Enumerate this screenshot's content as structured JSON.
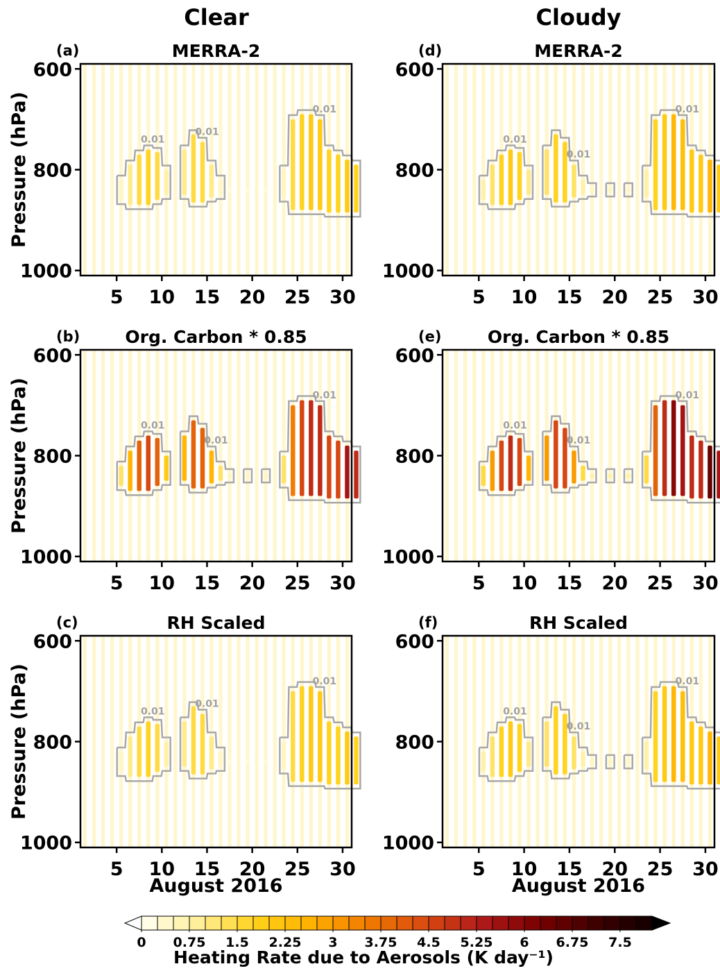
{
  "column_titles": [
    "Clear",
    "Cloudy"
  ],
  "chart_data": [
    {
      "type": "heatmap",
      "panel_label": "(a)",
      "title": "MERRA-2",
      "ylabel": "Pressure (hPa)",
      "xlim": [
        1,
        31
      ],
      "xticks": [
        5,
        10,
        15,
        20,
        25,
        30
      ],
      "ylim": [
        1010,
        590
      ],
      "yticks": [
        600,
        800,
        1000
      ],
      "contour_level": 0.01,
      "x": [
        1,
        2,
        3,
        4,
        5,
        6,
        7,
        8,
        9,
        10,
        11,
        12,
        13,
        14,
        15,
        16,
        17,
        18,
        19,
        20,
        21,
        22,
        23,
        24,
        25,
        26,
        27,
        28,
        29,
        30,
        31
      ],
      "top": [
        null,
        null,
        null,
        null,
        820,
        790,
        770,
        760,
        765,
        800,
        null,
        760,
        730,
        745,
        790,
        820,
        835,
        null,
        835,
        null,
        835,
        null,
        800,
        700,
        690,
        690,
        700,
        760,
        770,
        780,
        790
      ],
      "bottom": [
        null,
        null,
        null,
        null,
        860,
        870,
        870,
        870,
        860,
        850,
        null,
        850,
        865,
        865,
        855,
        850,
        845,
        null,
        845,
        null,
        845,
        null,
        855,
        880,
        880,
        880,
        880,
        885,
        885,
        885,
        885
      ],
      "values": [
        null,
        null,
        null,
        null,
        0.5,
        1,
        1.5,
        1.75,
        1.5,
        0.75,
        null,
        1,
        1.5,
        1.5,
        1,
        0.5,
        0.25,
        null,
        0.25,
        null,
        0.25,
        null,
        0.5,
        1.5,
        1.75,
        2,
        2,
        1.75,
        1.75,
        2,
        1.75
      ]
    },
    {
      "type": "heatmap",
      "panel_label": "(b)",
      "title": "Org. Carbon * 0.85",
      "ylabel": "Pressure (hPa)",
      "xlim": [
        1,
        31
      ],
      "xticks": [
        5,
        10,
        15,
        20,
        25,
        30
      ],
      "ylim": [
        1010,
        590
      ],
      "yticks": [
        600,
        800,
        1000
      ],
      "contour_level": 0.01,
      "x": [
        1,
        2,
        3,
        4,
        5,
        6,
        7,
        8,
        9,
        10,
        11,
        12,
        13,
        14,
        15,
        16,
        17,
        18,
        19,
        20,
        21,
        22,
        23,
        24,
        25,
        26,
        27,
        28,
        29,
        30,
        31
      ],
      "top": [
        null,
        null,
        null,
        null,
        820,
        790,
        770,
        760,
        765,
        800,
        null,
        760,
        730,
        745,
        790,
        820,
        835,
        null,
        835,
        null,
        835,
        null,
        800,
        700,
        690,
        690,
        700,
        760,
        770,
        780,
        790
      ],
      "bottom": [
        null,
        null,
        null,
        null,
        860,
        870,
        870,
        870,
        860,
        850,
        null,
        850,
        865,
        865,
        855,
        850,
        845,
        null,
        845,
        null,
        845,
        null,
        855,
        880,
        880,
        880,
        880,
        885,
        885,
        885,
        885
      ],
      "values": [
        null,
        null,
        null,
        null,
        1.25,
        2.5,
        4,
        4.5,
        4,
        2,
        null,
        2.5,
        4,
        4,
        2.5,
        1.25,
        0.5,
        null,
        0.5,
        null,
        0.5,
        null,
        1.25,
        3.5,
        4.5,
        5,
        5,
        4.5,
        4.5,
        5.5,
        5
      ]
    },
    {
      "type": "heatmap",
      "panel_label": "(c)",
      "title": "RH Scaled",
      "ylabel": "Pressure (hPa)",
      "xlabel": "August 2016",
      "xlim": [
        1,
        31
      ],
      "xticks": [
        5,
        10,
        15,
        20,
        25,
        30
      ],
      "ylim": [
        1010,
        590
      ],
      "yticks": [
        600,
        800,
        1000
      ],
      "contour_level": 0.01,
      "x": [
        1,
        2,
        3,
        4,
        5,
        6,
        7,
        8,
        9,
        10,
        11,
        12,
        13,
        14,
        15,
        16,
        17,
        18,
        19,
        20,
        21,
        22,
        23,
        24,
        25,
        26,
        27,
        28,
        29,
        30,
        31
      ],
      "top": [
        null,
        null,
        null,
        null,
        820,
        790,
        770,
        760,
        765,
        800,
        null,
        760,
        730,
        745,
        790,
        820,
        835,
        null,
        835,
        null,
        835,
        null,
        800,
        700,
        690,
        690,
        700,
        760,
        770,
        780,
        790
      ],
      "bottom": [
        null,
        null,
        null,
        null,
        860,
        870,
        870,
        870,
        860,
        850,
        null,
        850,
        865,
        865,
        855,
        850,
        845,
        null,
        845,
        null,
        845,
        null,
        855,
        880,
        880,
        880,
        880,
        885,
        885,
        885,
        885
      ],
      "values": [
        null,
        null,
        null,
        null,
        0.5,
        1,
        1.5,
        1.75,
        1.5,
        0.75,
        null,
        1,
        1.5,
        1.5,
        1,
        0.5,
        0.25,
        null,
        0.25,
        null,
        0.25,
        null,
        0.5,
        1.5,
        1.75,
        2,
        2,
        1.75,
        1.75,
        2,
        1.75
      ]
    },
    {
      "type": "heatmap",
      "panel_label": "(d)",
      "title": "MERRA-2",
      "xlim": [
        1,
        31
      ],
      "xticks": [
        5,
        10,
        15,
        20,
        25,
        30
      ],
      "ylim": [
        1010,
        590
      ],
      "yticks": [
        600,
        800,
        1000
      ],
      "contour_level": 0.01,
      "x": [
        1,
        2,
        3,
        4,
        5,
        6,
        7,
        8,
        9,
        10,
        11,
        12,
        13,
        14,
        15,
        16,
        17,
        18,
        19,
        20,
        21,
        22,
        23,
        24,
        25,
        26,
        27,
        28,
        29,
        30,
        31
      ],
      "top": [
        null,
        null,
        null,
        null,
        820,
        790,
        770,
        760,
        765,
        800,
        null,
        760,
        730,
        745,
        790,
        820,
        835,
        null,
        835,
        null,
        835,
        null,
        800,
        700,
        690,
        690,
        700,
        760,
        770,
        780,
        790
      ],
      "bottom": [
        null,
        null,
        null,
        null,
        860,
        870,
        870,
        870,
        860,
        850,
        null,
        850,
        865,
        865,
        855,
        850,
        845,
        null,
        845,
        null,
        845,
        null,
        855,
        880,
        880,
        880,
        880,
        885,
        885,
        885,
        885
      ],
      "values": [
        null,
        null,
        null,
        null,
        0.75,
        1.25,
        1.75,
        2,
        1.75,
        1,
        null,
        1.25,
        1.75,
        1.75,
        1.25,
        0.75,
        0.5,
        null,
        0.5,
        null,
        0.5,
        null,
        0.75,
        1.75,
        2,
        2.5,
        2.25,
        2,
        2,
        2.5,
        2
      ]
    },
    {
      "type": "heatmap",
      "panel_label": "(e)",
      "title": "Org. Carbon * 0.85",
      "xlim": [
        1,
        31
      ],
      "xticks": [
        5,
        10,
        15,
        20,
        25,
        30
      ],
      "ylim": [
        1010,
        590
      ],
      "yticks": [
        600,
        800,
        1000
      ],
      "contour_level": 0.01,
      "x": [
        1,
        2,
        3,
        4,
        5,
        6,
        7,
        8,
        9,
        10,
        11,
        12,
        13,
        14,
        15,
        16,
        17,
        18,
        19,
        20,
        21,
        22,
        23,
        24,
        25,
        26,
        27,
        28,
        29,
        30,
        31
      ],
      "top": [
        null,
        null,
        null,
        null,
        820,
        790,
        770,
        760,
        765,
        800,
        null,
        760,
        730,
        745,
        790,
        820,
        835,
        null,
        835,
        null,
        835,
        null,
        800,
        700,
        690,
        690,
        700,
        760,
        770,
        780,
        790
      ],
      "bottom": [
        null,
        null,
        null,
        null,
        860,
        870,
        870,
        870,
        860,
        850,
        null,
        850,
        865,
        865,
        855,
        850,
        845,
        null,
        845,
        null,
        845,
        null,
        855,
        880,
        880,
        880,
        880,
        885,
        885,
        885,
        885
      ],
      "values": [
        null,
        null,
        null,
        null,
        1.5,
        3,
        4.5,
        5,
        4.5,
        2.5,
        null,
        3,
        4.5,
        4.5,
        3,
        1.5,
        0.75,
        null,
        0.75,
        null,
        0.75,
        null,
        1.5,
        4,
        5,
        6,
        5.5,
        5,
        5,
        6.5,
        5.5
      ]
    },
    {
      "type": "heatmap",
      "panel_label": "(f)",
      "title": "RH Scaled",
      "xlabel": "August 2016",
      "xlim": [
        1,
        31
      ],
      "xticks": [
        5,
        10,
        15,
        20,
        25,
        30
      ],
      "ylim": [
        1010,
        590
      ],
      "yticks": [
        600,
        800,
        1000
      ],
      "contour_level": 0.01,
      "x": [
        1,
        2,
        3,
        4,
        5,
        6,
        7,
        8,
        9,
        10,
        11,
        12,
        13,
        14,
        15,
        16,
        17,
        18,
        19,
        20,
        21,
        22,
        23,
        24,
        25,
        26,
        27,
        28,
        29,
        30,
        31
      ],
      "top": [
        null,
        null,
        null,
        null,
        820,
        790,
        770,
        760,
        765,
        800,
        null,
        760,
        730,
        745,
        790,
        820,
        835,
        null,
        835,
        null,
        835,
        null,
        800,
        700,
        690,
        690,
        700,
        760,
        770,
        780,
        790
      ],
      "bottom": [
        null,
        null,
        null,
        null,
        860,
        870,
        870,
        870,
        860,
        850,
        null,
        850,
        865,
        865,
        855,
        850,
        845,
        null,
        845,
        null,
        845,
        null,
        855,
        880,
        880,
        880,
        880,
        885,
        885,
        885,
        885
      ],
      "values": [
        null,
        null,
        null,
        null,
        0.75,
        1.25,
        1.75,
        2,
        1.75,
        1,
        null,
        1.25,
        1.75,
        1.75,
        1.25,
        0.75,
        0.5,
        null,
        0.5,
        null,
        0.5,
        null,
        0.75,
        1.75,
        2,
        2.5,
        2.25,
        2,
        2,
        2.5,
        2
      ]
    }
  ],
  "colorbar": {
    "label": "Heating Rate due to Aerosols (K day⁻¹)",
    "clim": [
      0,
      8
    ],
    "level_step": 0.25,
    "ticks": [
      0,
      0.75,
      1.5,
      2.25,
      3,
      3.75,
      4.5,
      5.25,
      6,
      6.75,
      7.5
    ],
    "colormap": [
      "#fffff2",
      "#ffef9a",
      "#ffd21a",
      "#ffb000",
      "#f07a00",
      "#d84a10",
      "#b01a1a",
      "#7a0000",
      "#400000",
      "#120000"
    ]
  }
}
